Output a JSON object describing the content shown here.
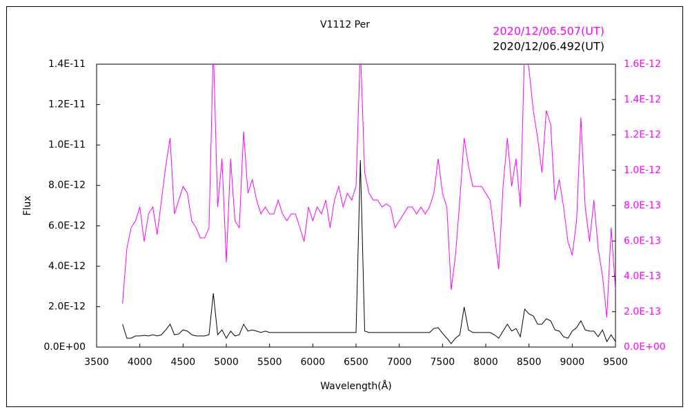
{
  "chart_data": {
    "type": "line",
    "title": "V1112 Per",
    "xlabel": "Wavelength(Å)",
    "ylabel": "Flux",
    "xlim": [
      3500,
      9500
    ],
    "xticks": [
      3500,
      4000,
      4500,
      5000,
      5500,
      6000,
      6500,
      7000,
      7500,
      8000,
      8500,
      9000,
      9500
    ],
    "ylim": [
      0,
      1.4e-11
    ],
    "yticks": [
      {
        "value": 0,
        "label": "0.0E+00"
      },
      {
        "value": 2e-12,
        "label": "2.0E-12"
      },
      {
        "value": 4e-12,
        "label": "4.0E-12"
      },
      {
        "value": 6e-12,
        "label": "6.0E-12"
      },
      {
        "value": 8e-12,
        "label": "8.0E-12"
      },
      {
        "value": 1e-11,
        "label": "1.0E-11"
      },
      {
        "value": 1.2e-11,
        "label": "1.2E-11"
      },
      {
        "value": 1.4e-11,
        "label": "1.4E-11"
      }
    ],
    "y2lim": [
      0,
      1.6e-12
    ],
    "y2ticks": [
      {
        "value": 0,
        "label": "0.0E+00"
      },
      {
        "value": 2e-13,
        "label": "2.0E-13"
      },
      {
        "value": 4e-13,
        "label": "4.0E-13"
      },
      {
        "value": 6e-13,
        "label": "6.0E-13"
      },
      {
        "value": 8e-13,
        "label": "8.0E-13"
      },
      {
        "value": 1e-12,
        "label": "1.0E-12"
      },
      {
        "value": 1.2e-12,
        "label": "1.2E-12"
      },
      {
        "value": 1.4e-12,
        "label": "1.4E-12"
      },
      {
        "value": 1.6e-12,
        "label": "1.6E-12"
      }
    ],
    "grid": false,
    "x": [
      3800,
      3850,
      3900,
      3950,
      4000,
      4050,
      4100,
      4150,
      4200,
      4250,
      4300,
      4350,
      4400,
      4450,
      4500,
      4550,
      4600,
      4650,
      4700,
      4750,
      4800,
      4850,
      4900,
      4950,
      5000,
      5050,
      5100,
      5150,
      5200,
      5250,
      5300,
      5350,
      5400,
      5450,
      5500,
      5550,
      5600,
      5650,
      5700,
      5750,
      5800,
      5850,
      5900,
      5950,
      6000,
      6050,
      6100,
      6150,
      6200,
      6250,
      6300,
      6350,
      6400,
      6450,
      6500,
      6550,
      6600,
      6650,
      6700,
      6750,
      6800,
      6850,
      6900,
      6950,
      7000,
      7050,
      7100,
      7150,
      7200,
      7250,
      7300,
      7350,
      7400,
      7450,
      7500,
      7550,
      7600,
      7650,
      7700,
      7750,
      7800,
      7850,
      7900,
      7950,
      8000,
      8050,
      8100,
      8150,
      8200,
      8250,
      8300,
      8350,
      8400,
      8450,
      8500,
      8550,
      8600,
      8650,
      8700,
      8750,
      8800,
      8850,
      8900,
      8950,
      9000,
      9050,
      9100,
      9150,
      9200,
      9250,
      9300,
      9350,
      9400,
      9450,
      9500
    ],
    "series": [
      {
        "name": "2020/12/06.507(UT)",
        "color": "#ff00ff",
        "axis": "y2",
        "values": [
          2.46e-13,
          5.58e-13,
          6.75e-13,
          7.14e-13,
          7.92e-13,
          5.97e-13,
          7.53e-13,
          7.92e-13,
          6.36e-13,
          8.31e-13,
          1.026e-12,
          1.182e-12,
          7.53e-13,
          8.31e-13,
          9.09e-13,
          8.7e-13,
          7.14e-13,
          6.75e-13,
          6.17e-13,
          6.17e-13,
          6.75e-13,
          1.7e-12,
          7.92e-13,
          1.065e-12,
          4.8e-13,
          1.065e-12,
          7.14e-13,
          6.75e-13,
          1.22e-12,
          8.7e-13,
          9.48e-13,
          8.31e-13,
          7.53e-13,
          7.92e-13,
          7.53e-13,
          7.53e-13,
          8.31e-13,
          7.53e-13,
          7.14e-13,
          7.53e-13,
          7.53e-13,
          6.75e-13,
          5.97e-13,
          7.92e-13,
          7.14e-13,
          7.92e-13,
          7.53e-13,
          8.31e-13,
          6.75e-13,
          8.31e-13,
          9.09e-13,
          7.92e-13,
          8.7e-13,
          8.31e-13,
          9.09e-13,
          1.7e-12,
          9.87e-13,
          8.7e-13,
          8.31e-13,
          8.31e-13,
          7.92e-13,
          8.1e-13,
          7.92e-13,
          6.75e-13,
          7.14e-13,
          7.53e-13,
          7.92e-13,
          7.92e-13,
          7.53e-13,
          7.92e-13,
          7.53e-13,
          7.92e-13,
          8.7e-13,
          1.065e-12,
          8.7e-13,
          7.92e-13,
          3.24e-13,
          5.19e-13,
          8.31e-13,
          1.182e-12,
          1.026e-12,
          9.09e-13,
          9.09e-13,
          9.09e-13,
          8.7e-13,
          8.31e-13,
          6.36e-13,
          4.41e-13,
          9.09e-13,
          1.182e-12,
          9.09e-13,
          1.065e-12,
          7.92e-13,
          1.7e-12,
          1.57e-12,
          1.338e-12,
          1.182e-12,
          9.87e-13,
          1.338e-12,
          1.26e-12,
          8.31e-13,
          9.48e-13,
          7.92e-13,
          5.97e-13,
          5.19e-13,
          7.14e-13,
          1.299e-12,
          7.92e-13,
          5.97e-13,
          8.31e-13,
          5.58e-13,
          4.02e-13,
          1.68e-13,
          6.75e-13,
          3.24e-13
        ]
      },
      {
        "name": "2020/12/06.492(UT)",
        "color": "#000000",
        "values": [
          1.13e-12,
          4.4e-13,
          4.4e-13,
          5.5e-13,
          5.5e-13,
          5.8e-13,
          5.5e-13,
          6.1e-13,
          5.5e-13,
          6.1e-13,
          8.5e-13,
          1.13e-12,
          6.1e-13,
          6.5e-13,
          8.5e-13,
          7.9e-13,
          6.1e-13,
          5.5e-13,
          5.5e-13,
          5.5e-13,
          6.1e-13,
          2.66e-12,
          6.1e-13,
          8.5e-13,
          4.4e-13,
          7.9e-13,
          5.5e-13,
          6.1e-13,
          1.13e-12,
          7.9e-13,
          8.5e-13,
          7.9e-13,
          7.2e-13,
          7.9e-13,
          7.2e-13,
          7.2e-13,
          7.2e-13,
          7.2e-13,
          7.2e-13,
          7.2e-13,
          7.2e-13,
          7.2e-13,
          7.2e-13,
          7.2e-13,
          7.2e-13,
          7.2e-13,
          7.2e-13,
          7.2e-13,
          7.2e-13,
          7.2e-13,
          7.2e-13,
          7.2e-13,
          7.2e-13,
          7.2e-13,
          7.2e-13,
          9.25e-12,
          7.9e-13,
          7.2e-13,
          7.2e-13,
          7.2e-13,
          7.2e-13,
          7.2e-13,
          7.2e-13,
          7.2e-13,
          7.2e-13,
          7.2e-13,
          7.2e-13,
          7.2e-13,
          7.2e-13,
          7.2e-13,
          7.2e-13,
          7.2e-13,
          9.2e-13,
          9.6e-13,
          6.8e-13,
          4.4e-13,
          1.7e-13,
          4.4e-13,
          6.1e-13,
          1.98e-12,
          8.5e-13,
          7.2e-13,
          7.2e-13,
          7.2e-13,
          7.2e-13,
          7.2e-13,
          6.1e-13,
          4.4e-13,
          7.9e-13,
          1.13e-12,
          7.9e-13,
          9.2e-13,
          5.1e-13,
          1.88e-12,
          1.64e-12,
          1.54e-12,
          1.13e-12,
          1.13e-12,
          1.4e-12,
          1.3e-12,
          8.5e-13,
          7.9e-13,
          5.1e-13,
          4.4e-13,
          7.9e-13,
          9.6e-13,
          1.3e-12,
          8.5e-13,
          7.9e-13,
          7.9e-13,
          5.1e-13,
          8.5e-13,
          2.7e-13,
          6.1e-13,
          2.7e-13
        ]
      }
    ]
  }
}
